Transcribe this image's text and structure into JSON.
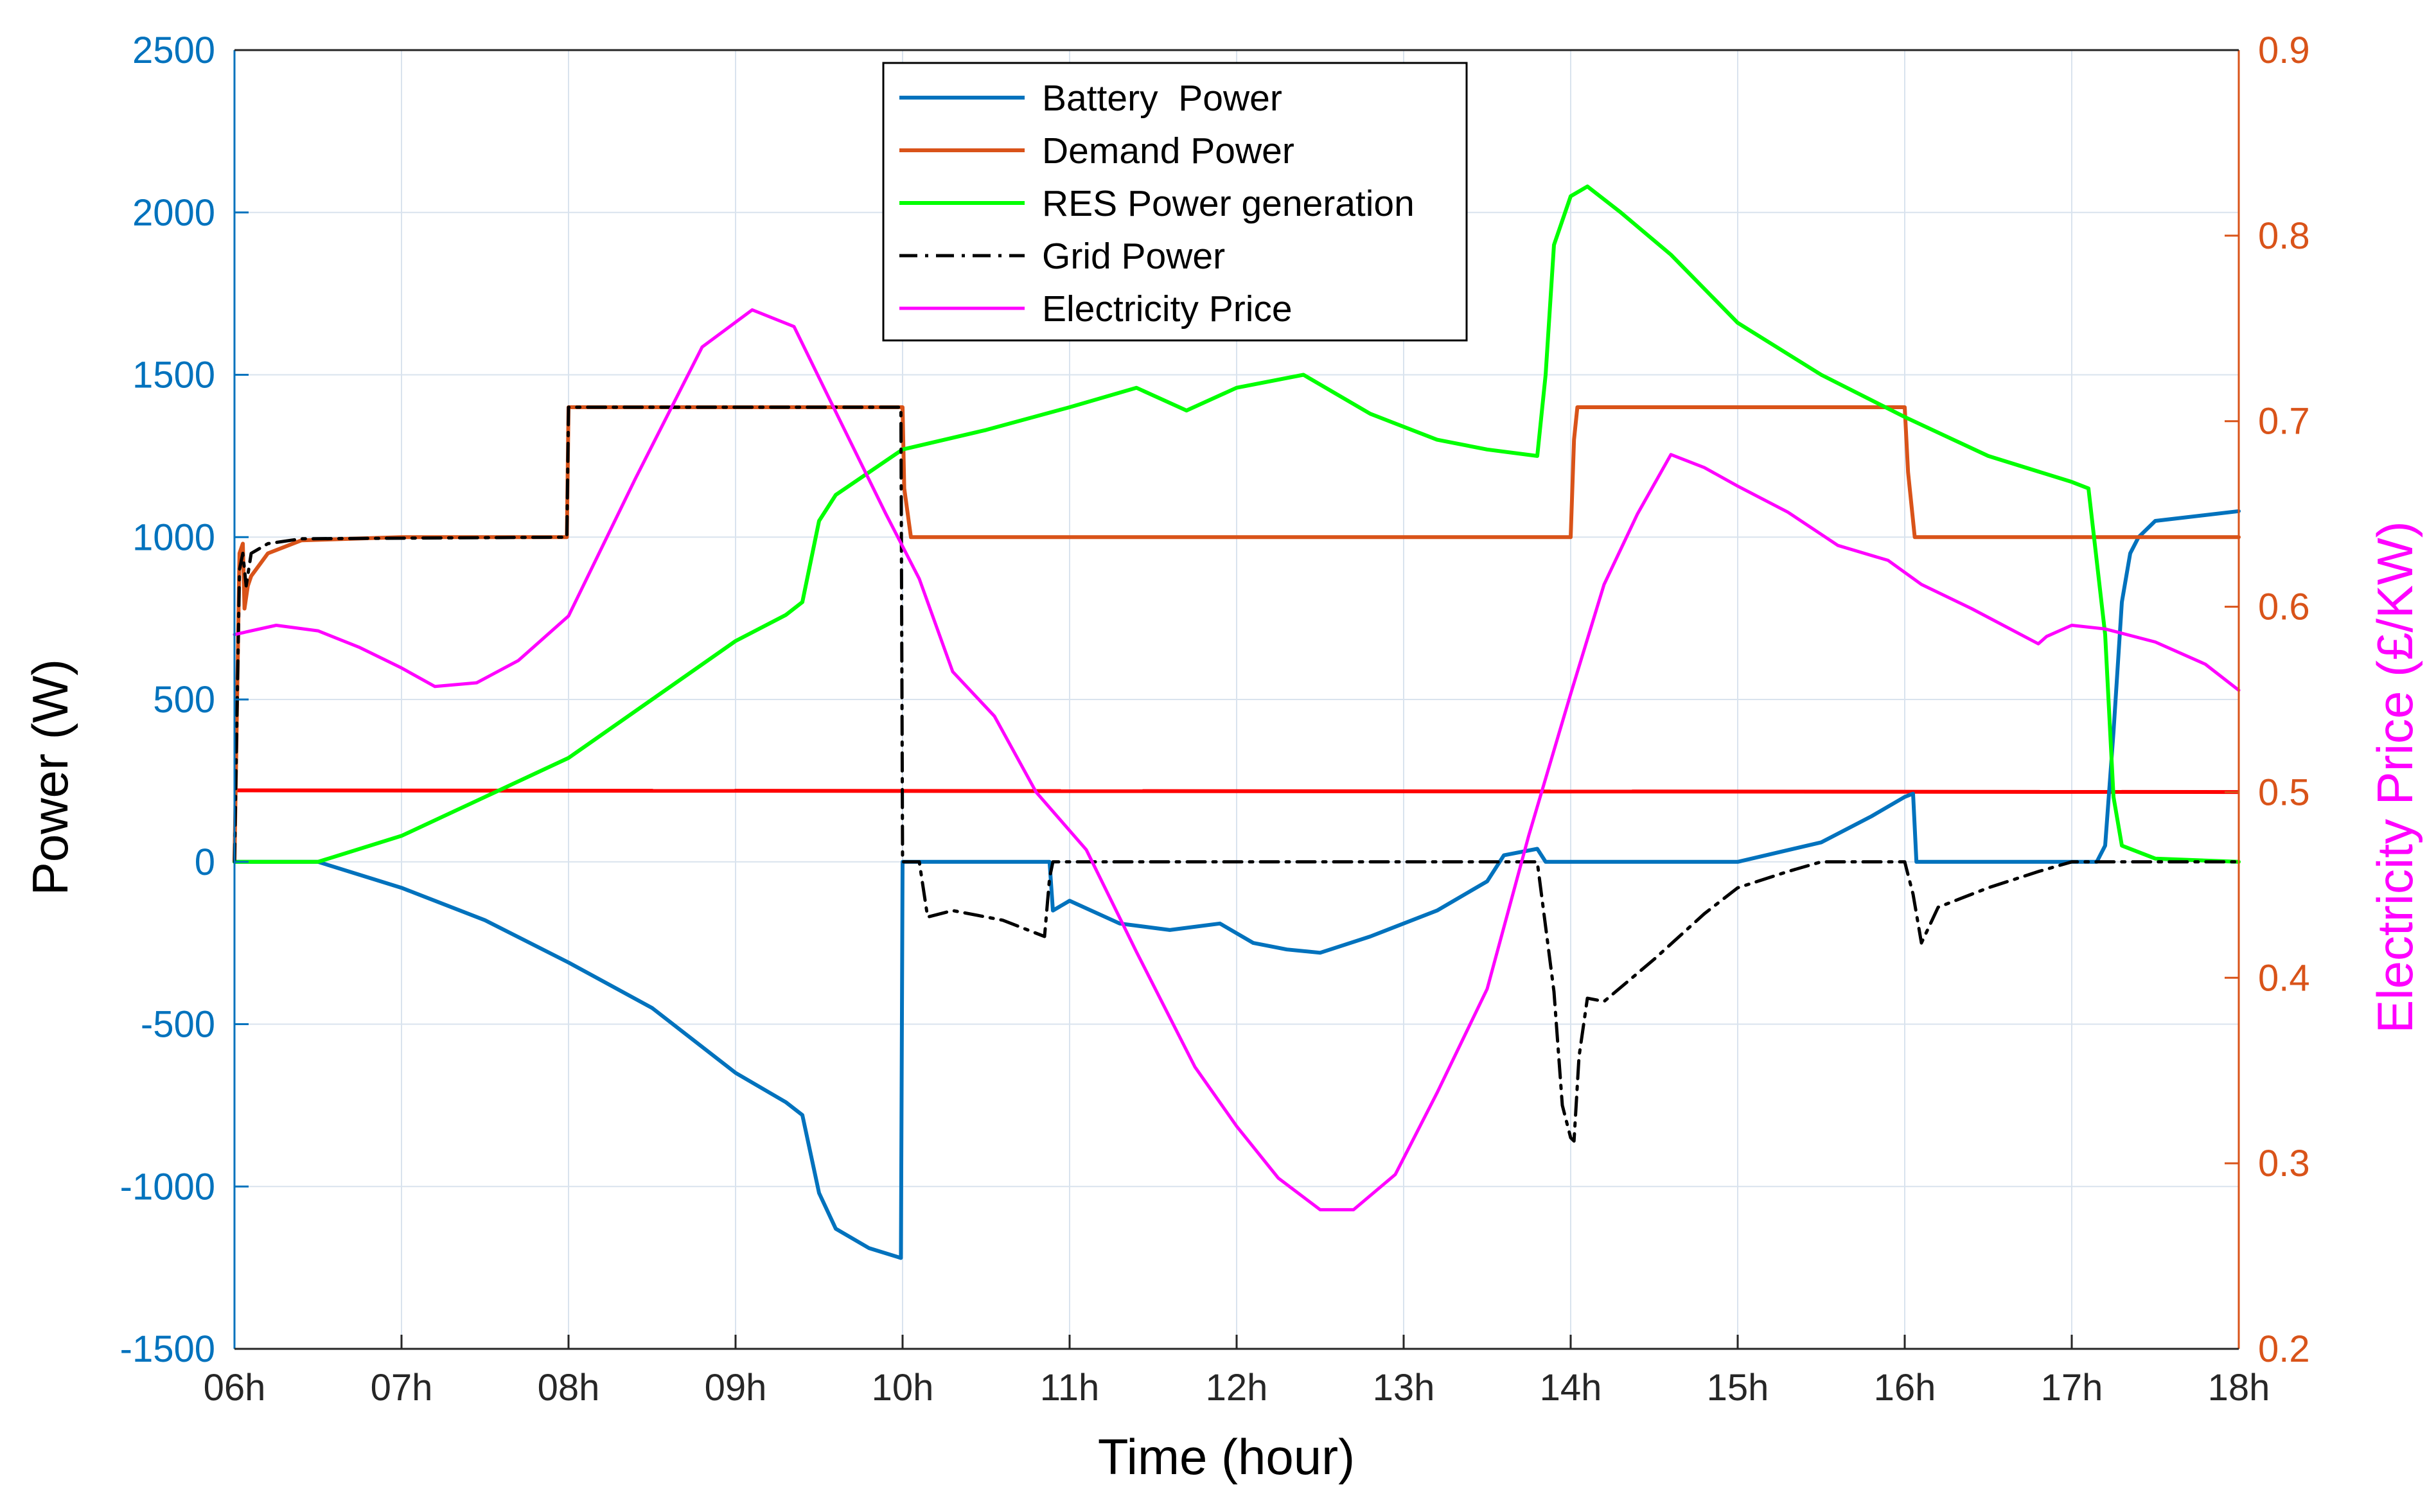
{
  "chart_data": {
    "type": "line",
    "xlabel": "Time (hour)",
    "ylabel_left": "Power (W)",
    "ylabel_right": "Electricity Price (£/KW)",
    "xlim": [
      6,
      18
    ],
    "ylim_left": [
      -1500,
      2500
    ],
    "ylim_right": [
      0.2,
      0.9
    ],
    "grid": true,
    "legend_position": "top-center",
    "x_ticks": [
      6,
      7,
      8,
      9,
      10,
      11,
      12,
      13,
      14,
      15,
      16,
      17,
      18
    ],
    "x_tick_labels": [
      "06h",
      "07h",
      "08h",
      "09h",
      "10h",
      "11h",
      "12h",
      "13h",
      "14h",
      "15h",
      "16h",
      "17h",
      "18h"
    ],
    "y_left_ticks": [
      -1500,
      -1000,
      -500,
      0,
      500,
      1000,
      1500,
      2000,
      2500
    ],
    "y_left_tick_labels": [
      "-1500",
      "-1000",
      "-500",
      "0",
      "500",
      "1000",
      "1500",
      "2000",
      "2500"
    ],
    "y_right_ticks": [
      0.2,
      0.3,
      0.4,
      0.5,
      0.6,
      0.7,
      0.8,
      0.9
    ],
    "y_right_tick_labels": [
      "0.2",
      "0.3",
      "0.4",
      "0.5",
      "0.6",
      "0.7",
      "0.8",
      "0.9"
    ],
    "colors": {
      "left_axis": "#0072BD",
      "right_axis": "#D95319",
      "right_label": "#FF00FF",
      "grid": "#d9e3ee",
      "reference_line": "#FF0000"
    },
    "series": [
      {
        "name": "Battery  Power",
        "key": "battery",
        "axis": "left",
        "color": "#0072BD",
        "dash": "solid",
        "width": 6,
        "x": [
          6.0,
          6.5,
          7.0,
          7.5,
          8.0,
          8.5,
          9.0,
          9.3,
          9.4,
          9.5,
          9.6,
          9.8,
          9.99,
          10.0,
          10.01,
          10.5,
          10.88,
          10.9,
          11.0,
          11.3,
          11.6,
          11.9,
          12.1,
          12.3,
          12.5,
          12.8,
          13.2,
          13.5,
          13.6,
          13.8,
          13.85,
          13.86,
          14.5,
          15.0,
          15.5,
          15.8,
          16.0,
          16.05,
          16.07,
          16.1,
          16.5,
          17.0,
          17.1,
          17.15,
          17.2,
          17.25,
          17.3,
          17.35,
          17.4,
          17.5,
          18.0
        ],
        "y": [
          0,
          0,
          -80,
          -180,
          -310,
          -450,
          -650,
          -740,
          -780,
          -1020,
          -1130,
          -1190,
          -1220,
          0,
          0,
          0,
          0,
          -150,
          -120,
          -190,
          -210,
          -190,
          -250,
          -270,
          -280,
          -230,
          -150,
          -60,
          20,
          40,
          0,
          0,
          0,
          0,
          60,
          140,
          200,
          210,
          0,
          0,
          0,
          0,
          0,
          0,
          50,
          400,
          800,
          950,
          1000,
          1050,
          1080
        ]
      },
      {
        "name": "Demand Power",
        "key": "demand",
        "axis": "left",
        "color": "#D95319",
        "dash": "solid",
        "width": 6,
        "x": [
          6.0,
          6.03,
          6.05,
          6.06,
          6.08,
          6.1,
          6.2,
          6.4,
          7.0,
          7.99,
          8.0,
          9.99,
          10.0,
          10.01,
          10.05,
          14.0,
          14.02,
          14.04,
          16.0,
          16.02,
          16.06,
          18.0
        ],
        "y": [
          0,
          950,
          980,
          780,
          850,
          880,
          950,
          990,
          1000,
          1000,
          1400,
          1400,
          1400,
          1150,
          1000,
          1000,
          1300,
          1400,
          1400,
          1200,
          1000,
          1000
        ]
      },
      {
        "name": "RES Power generation",
        "key": "res",
        "axis": "left",
        "color": "#00FF00",
        "dash": "solid",
        "width": 6,
        "x": [
          6.0,
          6.5,
          7.0,
          7.5,
          8.0,
          8.5,
          9.0,
          9.3,
          9.4,
          9.5,
          9.6,
          9.8,
          10.0,
          10.5,
          11.0,
          11.4,
          11.7,
          12.0,
          12.4,
          12.8,
          13.2,
          13.5,
          13.8,
          13.85,
          13.9,
          14.0,
          14.1,
          14.3,
          14.6,
          15.0,
          15.5,
          16.0,
          16.5,
          17.0,
          17.1,
          17.2,
          17.25,
          17.3,
          17.5,
          18.0
        ],
        "y": [
          0,
          0,
          80,
          200,
          320,
          500,
          680,
          760,
          800,
          1050,
          1130,
          1200,
          1270,
          1330,
          1400,
          1460,
          1390,
          1460,
          1500,
          1380,
          1300,
          1270,
          1250,
          1500,
          1900,
          2050,
          2080,
          2000,
          1870,
          1660,
          1500,
          1370,
          1250,
          1170,
          1150,
          700,
          200,
          50,
          10,
          0
        ]
      },
      {
        "name": "Grid Power",
        "key": "grid",
        "axis": "left",
        "color": "#000000",
        "dash": "dashdot",
        "width": 5,
        "x": [
          6.0,
          6.03,
          6.05,
          6.07,
          6.1,
          6.2,
          6.4,
          7.99,
          8.0,
          9.99,
          10.0,
          10.01,
          10.1,
          10.15,
          10.3,
          10.6,
          10.85,
          10.88,
          10.9,
          13.8,
          13.9,
          13.95,
          14.0,
          14.02,
          14.05,
          14.1,
          14.2,
          14.5,
          14.8,
          15.0,
          15.3,
          15.5,
          15.6,
          16.0,
          16.05,
          16.1,
          16.2,
          16.5,
          16.8,
          17.0,
          17.1,
          18.0
        ],
        "y": [
          0,
          900,
          950,
          850,
          950,
          980,
          995,
          1000,
          1400,
          1400,
          0,
          0,
          0,
          -170,
          -150,
          -180,
          -230,
          -50,
          0,
          0,
          -400,
          -750,
          -850,
          -860,
          -600,
          -420,
          -430,
          -300,
          -160,
          -80,
          -30,
          0,
          0,
          0,
          -100,
          -250,
          -140,
          -80,
          -30,
          0,
          0,
          0
        ]
      },
      {
        "name": "Electricity Price",
        "key": "price",
        "axis": "right",
        "color": "#FF00FF",
        "dash": "solid",
        "width": 5,
        "x": [
          6.0,
          6.25,
          6.5,
          6.75,
          7.0,
          7.2,
          7.45,
          7.7,
          8.0,
          8.4,
          8.8,
          9.1,
          9.35,
          9.6,
          9.9,
          10.1,
          10.3,
          10.55,
          10.8,
          11.1,
          11.4,
          11.75,
          12.0,
          12.25,
          12.5,
          12.7,
          12.95,
          13.2,
          13.5,
          13.75,
          14.0,
          14.2,
          14.4,
          14.6,
          14.8,
          15.0,
          15.3,
          15.6,
          15.9,
          16.1,
          16.4,
          16.8,
          16.85,
          17.0,
          17.2,
          17.5,
          17.8,
          18.0
        ],
        "y": [
          0.585,
          0.59,
          0.587,
          0.578,
          0.567,
          0.557,
          0.559,
          0.571,
          0.595,
          0.669,
          0.74,
          0.76,
          0.751,
          0.705,
          0.65,
          0.615,
          0.565,
          0.541,
          0.5,
          0.469,
          0.414,
          0.352,
          0.32,
          0.292,
          0.275,
          0.275,
          0.294,
          0.338,
          0.394,
          0.477,
          0.553,
          0.612,
          0.65,
          0.682,
          0.675,
          0.665,
          0.651,
          0.633,
          0.625,
          0.612,
          0.599,
          0.58,
          0.584,
          0.59,
          0.588,
          0.581,
          0.569,
          0.555
        ]
      }
    ],
    "reference_line": {
      "axis": "left",
      "y_start": 220,
      "y_end": 215,
      "color": "#FF0000"
    }
  }
}
